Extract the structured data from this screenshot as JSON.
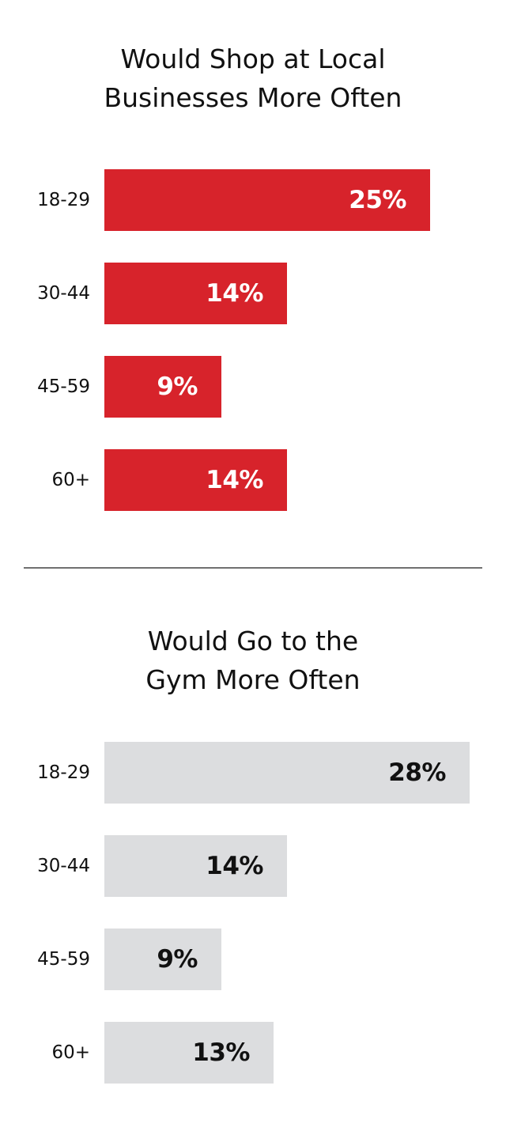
{
  "colors": {
    "chart1_bar": "#d7232b",
    "chart1_value_text": "#ffffff",
    "chart2_bar": "#dcdddf",
    "chart2_value_text": "#111111",
    "divider": "#707070"
  },
  "chart_data": [
    {
      "type": "bar",
      "orientation": "horizontal",
      "title_lines": [
        "Would Shop at Local",
        "Businesses More Often"
      ],
      "title": "Would Shop at Local Businesses More Often",
      "categories": [
        "18-29",
        "30-44",
        "45-59",
        "60+"
      ],
      "values": [
        25,
        14,
        9,
        14
      ],
      "value_labels": [
        "25%",
        "14%",
        "9%",
        "14%"
      ],
      "unit": "%",
      "xlim": [
        0,
        29
      ],
      "grid": false,
      "legend": "none"
    },
    {
      "type": "bar",
      "orientation": "horizontal",
      "title_lines": [
        "Would Go to the",
        "Gym More Often"
      ],
      "title": "Would Go to the Gym More Often",
      "categories": [
        "18-29",
        "30-44",
        "45-59",
        "60+"
      ],
      "values": [
        28,
        14,
        9,
        13
      ],
      "value_labels": [
        "28%",
        "14%",
        "9%",
        "13%"
      ],
      "unit": "%",
      "xlim": [
        0,
        29
      ],
      "grid": false,
      "legend": "none"
    }
  ]
}
